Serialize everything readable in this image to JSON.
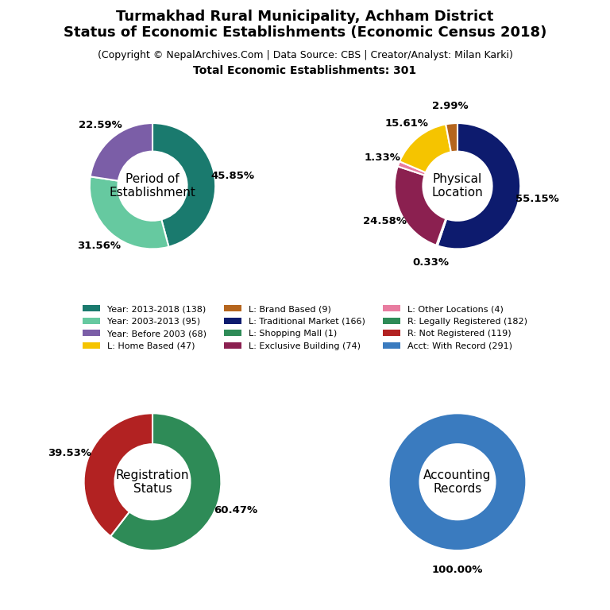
{
  "title": "Turmakhad Rural Municipality, Achham District\nStatus of Economic Establishments (Economic Census 2018)",
  "subtitle": "(Copyright © NepalArchives.Com | Data Source: CBS | Creator/Analyst: Milan Karki)",
  "annotations": [
    "Total Economic Establishments: 301"
  ],
  "legend": "center",
  "legend_entries": [
    {
      "name": "Year: 2013-2018 (138)",
      "color": "#1a7a6e"
    },
    {
      "name": "Year: 2003-2013 (95)",
      "color": "#66c9a0"
    },
    {
      "name": "Year: Before 2003 (68)",
      "color": "#7b5ea7"
    },
    {
      "name": "L: Home Based (47)",
      "color": "#f5c400"
    },
    {
      "name": "L: Brand Based (9)",
      "color": "#b5651d"
    },
    {
      "name": "L: Traditional Market (166)",
      "color": "#0d1b6e"
    },
    {
      "name": "L: Shopping Mall (1)",
      "color": "#2e8b57"
    },
    {
      "name": "L: Exclusive Building (74)",
      "color": "#8b2050"
    },
    {
      "name": "L: Other Locations (4)",
      "color": "#e87ca0"
    },
    {
      "name": "R: Legally Registered (182)",
      "color": "#2e8b57"
    },
    {
      "name": "R: Not Registered (119)",
      "color": "#b22222"
    },
    {
      "name": "Acct: With Record (291)",
      "color": "#3a7bbf"
    }
  ],
  "chart_data": [
    {
      "type": "pie",
      "title": "Period of\nEstablishment",
      "values": [
        45.85,
        31.56,
        22.59
      ],
      "value_labels": [
        "45.85%",
        "31.56%",
        "22.59%"
      ],
      "colors": [
        "#1a7a6e",
        "#66c9a0",
        "#7b5ea7"
      ],
      "data_labels": true
    },
    {
      "type": "pie",
      "title": "Physical\nLocation",
      "values": [
        55.15,
        0.33,
        24.58,
        1.33,
        15.61,
        2.99
      ],
      "value_labels": [
        "55.15%",
        "0.33%",
        "24.58%",
        "1.33%",
        "15.61%",
        "2.99%"
      ],
      "colors": [
        "#0d1b6e",
        "#ffffff",
        "#8b2050",
        "#e87ca0",
        "#f5c400",
        "#b5651d"
      ],
      "data_labels": true
    },
    {
      "type": "pie",
      "title": "Registration\nStatus",
      "values": [
        60.47,
        39.53
      ],
      "value_labels": [
        "60.47%",
        "39.53%"
      ],
      "colors": [
        "#2e8b57",
        "#b22222"
      ],
      "data_labels": true
    },
    {
      "type": "pie",
      "title": "Accounting\nRecords",
      "values": [
        100.0
      ],
      "value_labels": [
        "100.00%"
      ],
      "colors": [
        "#3a7bbf"
      ],
      "data_labels": true
    }
  ]
}
